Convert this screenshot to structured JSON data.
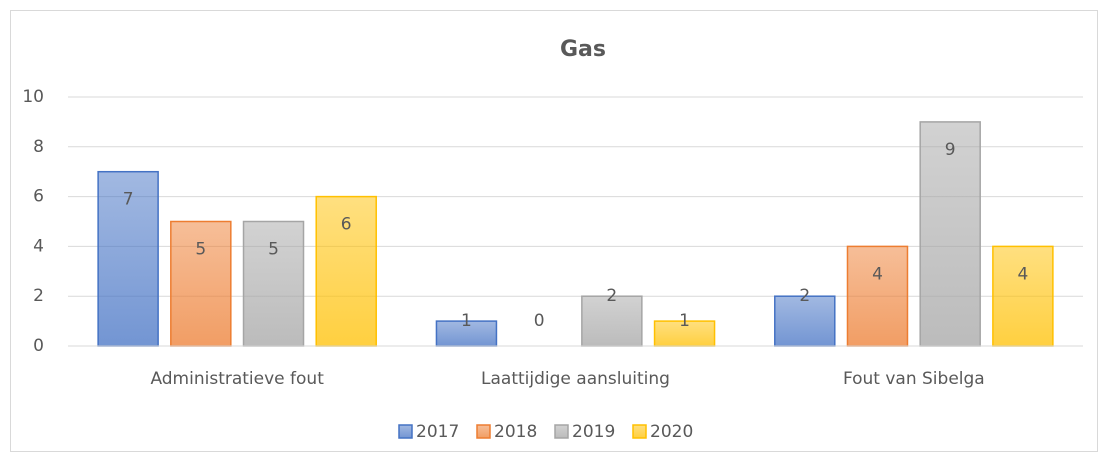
{
  "chart_data": {
    "type": "bar",
    "title": "Gas",
    "categories": [
      "Administratieve fout",
      "Laattijdige aansluiting",
      "Fout van Sibelga"
    ],
    "series": [
      {
        "name": "2017",
        "color": "#4472c4",
        "values": [
          7,
          1,
          2
        ]
      },
      {
        "name": "2018",
        "color": "#ed7d31",
        "values": [
          5,
          0,
          4
        ]
      },
      {
        "name": "2019",
        "color": "#a5a5a5",
        "values": [
          5,
          2,
          9
        ]
      },
      {
        "name": "2020",
        "color": "#ffc000",
        "values": [
          6,
          1,
          4
        ]
      }
    ],
    "ylim": [
      0,
      10
    ],
    "yticks": [
      0,
      2,
      4,
      6,
      8,
      10
    ],
    "grid": true,
    "legend": "bottom"
  }
}
